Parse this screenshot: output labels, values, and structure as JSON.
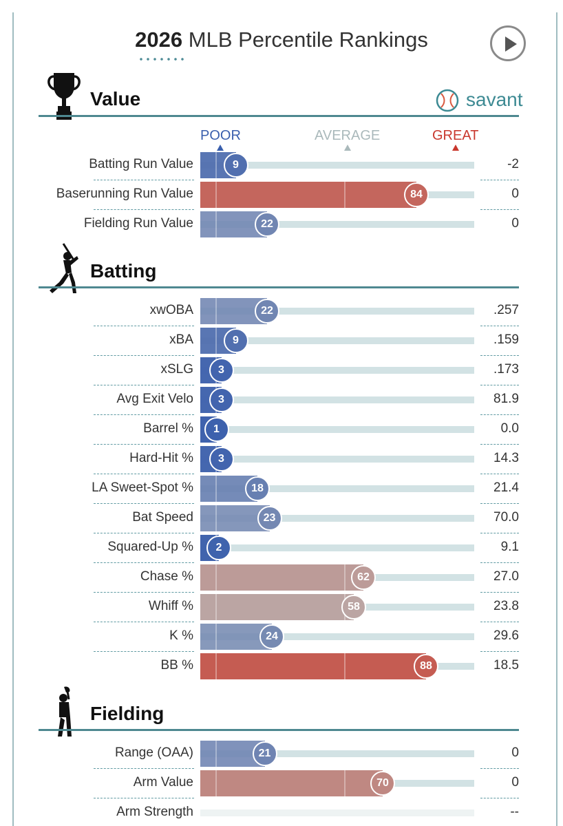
{
  "title": {
    "year": "2026",
    "text": "MLB Percentile Rankings"
  },
  "brand": {
    "name": "savant"
  },
  "icons": {
    "play": "play-icon",
    "value": "trophy-icon",
    "batting": "batter-icon",
    "fielding": "fielder-icon",
    "brand": "baseball-icon"
  },
  "colors": {
    "poor": "#3a5fad",
    "average": "#b6c4c6",
    "great": "#c94b3e",
    "accent": "#4e8890"
  },
  "scale": {
    "poor": "POOR",
    "average": "AVERAGE",
    "great": "GREAT"
  },
  "sections": [
    {
      "key": "value",
      "title": "Value"
    },
    {
      "key": "batting",
      "title": "Batting"
    },
    {
      "key": "fielding",
      "title": "Fielding"
    }
  ],
  "chart_data": {
    "type": "bar",
    "title": "2026 MLB Percentile Rankings",
    "xlim": [
      0,
      100
    ],
    "rows": [
      {
        "section": "Value",
        "label": "Batting Run Value",
        "percentile": 9,
        "value": "-2"
      },
      {
        "section": "Value",
        "label": "Baserunning Run Value",
        "percentile": 84,
        "value": "0"
      },
      {
        "section": "Value",
        "label": "Fielding Run Value",
        "percentile": 22,
        "value": "0"
      },
      {
        "section": "Batting",
        "label": "xwOBA",
        "percentile": 22,
        "value": ".257"
      },
      {
        "section": "Batting",
        "label": "xBA",
        "percentile": 9,
        "value": ".159"
      },
      {
        "section": "Batting",
        "label": "xSLG",
        "percentile": 3,
        "value": ".173"
      },
      {
        "section": "Batting",
        "label": "Avg Exit Velo",
        "percentile": 3,
        "value": "81.9"
      },
      {
        "section": "Batting",
        "label": "Barrel %",
        "percentile": 1,
        "value": "0.0"
      },
      {
        "section": "Batting",
        "label": "Hard-Hit %",
        "percentile": 3,
        "value": "14.3"
      },
      {
        "section": "Batting",
        "label": "LA Sweet-Spot %",
        "percentile": 18,
        "value": "21.4"
      },
      {
        "section": "Batting",
        "label": "Bat Speed",
        "percentile": 23,
        "value": "70.0"
      },
      {
        "section": "Batting",
        "label": "Squared-Up %",
        "percentile": 2,
        "value": "9.1"
      },
      {
        "section": "Batting",
        "label": "Chase %",
        "percentile": 62,
        "value": "27.0"
      },
      {
        "section": "Batting",
        "label": "Whiff %",
        "percentile": 58,
        "value": "23.8"
      },
      {
        "section": "Batting",
        "label": "K %",
        "percentile": 24,
        "value": "29.6"
      },
      {
        "section": "Batting",
        "label": "BB %",
        "percentile": 88,
        "value": "18.5"
      },
      {
        "section": "Fielding",
        "label": "Range (OAA)",
        "percentile": 21,
        "value": "0"
      },
      {
        "section": "Fielding",
        "label": "Arm Value",
        "percentile": 70,
        "value": "0"
      },
      {
        "section": "Fielding",
        "label": "Arm Strength",
        "percentile": null,
        "value": "--"
      }
    ]
  }
}
